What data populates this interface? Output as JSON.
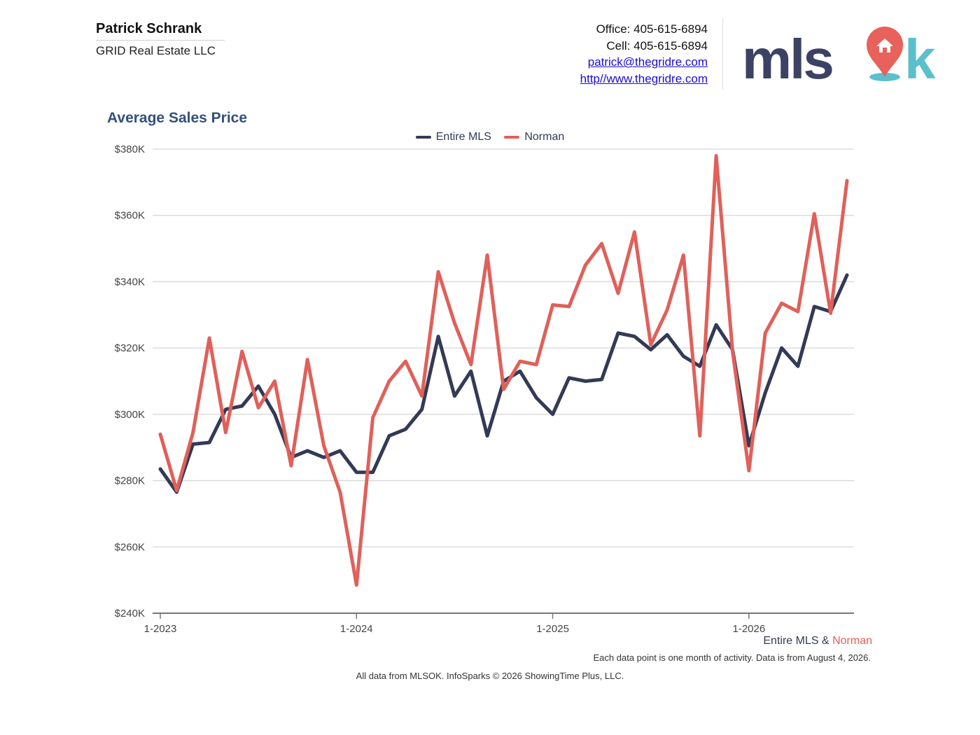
{
  "header": {
    "agent_name": "Patrick Schrank",
    "company": "GRID Real Estate LLC",
    "office": "Office: 405-615-6894",
    "cell": "Cell: 405-615-6894",
    "email": "patrick@thegridre.com",
    "website": "http//www.thegridre.com"
  },
  "logo": {
    "text_dark": "mls",
    "text_light": "k",
    "dark_color": "#3b4263",
    "light_color": "#5bbfcc",
    "pin_color": "#e8615a",
    "icon": "house-pin-icon"
  },
  "colors": {
    "series_dark": "#333a55",
    "series_red": "#e0605a",
    "title": "#34507a",
    "grid": "#d6d6d6"
  },
  "footer": {
    "series_1": "Entire MLS",
    "amp": "&",
    "series_2": "Norman",
    "note": "Each data point is one month of activity. Data is from August 4, 2026.",
    "source": "All data from MLSOK. InfoSparks © 2026 ShowingTime Plus, LLC."
  },
  "chart_data": {
    "type": "line",
    "title": "Average Sales Price",
    "xlabel": "",
    "ylabel": "",
    "legend_position": "top-center",
    "grid": true,
    "ylim": [
      240000,
      380000
    ],
    "yticks": [
      240000,
      260000,
      280000,
      300000,
      320000,
      340000,
      360000,
      380000
    ],
    "ytick_labels": [
      "$240K",
      "$260K",
      "$280K",
      "$300K",
      "$320K",
      "$340K",
      "$360K",
      "$380K"
    ],
    "x_tick_indices": [
      0,
      12,
      24,
      36
    ],
    "x_tick_labels": [
      "1-2023",
      "1-2024",
      "1-2025",
      "1-2026"
    ],
    "x": [
      "2023-01",
      "2023-02",
      "2023-03",
      "2023-04",
      "2023-05",
      "2023-06",
      "2023-07",
      "2023-08",
      "2023-09",
      "2023-10",
      "2023-11",
      "2023-12",
      "2024-01",
      "2024-02",
      "2024-03",
      "2024-04",
      "2024-05",
      "2024-06",
      "2024-07",
      "2024-08",
      "2024-09",
      "2024-10",
      "2024-11",
      "2024-12",
      "2025-01",
      "2025-02",
      "2025-03",
      "2025-04",
      "2025-05",
      "2025-06",
      "2025-07",
      "2025-08",
      "2025-09",
      "2025-10",
      "2025-11",
      "2025-12",
      "2026-01",
      "2026-02",
      "2026-03",
      "2026-04",
      "2026-05",
      "2026-06",
      "2026-07"
    ],
    "series": [
      {
        "name": "Entire MLS",
        "color": "#333a55",
        "values": [
          283500,
          276500,
          291000,
          291500,
          301500,
          302500,
          308500,
          300000,
          287000,
          289000,
          287000,
          289000,
          282500,
          282500,
          293500,
          295500,
          301500,
          323500,
          305500,
          313000,
          293500,
          310000,
          313000,
          305000,
          300000,
          311000,
          310000,
          310500,
          324500,
          323500,
          319500,
          324000,
          317500,
          314500,
          327000,
          319500,
          290500,
          306500,
          320000,
          314500,
          332500,
          331000,
          342000
        ]
      },
      {
        "name": "Norman",
        "color": "#e0605a",
        "values": [
          294000,
          277000,
          294500,
          323000,
          294500,
          319000,
          302000,
          310000,
          284500,
          316500,
          290500,
          276500,
          248500,
          299000,
          310000,
          316000,
          305500,
          343000,
          327500,
          315000,
          348000,
          307500,
          316000,
          315000,
          333000,
          332500,
          345000,
          351500,
          336500,
          355000,
          321000,
          331500,
          348000,
          293500,
          378000,
          319000,
          283000,
          324500,
          333500,
          331000,
          360500,
          330500,
          370500
        ]
      }
    ]
  }
}
